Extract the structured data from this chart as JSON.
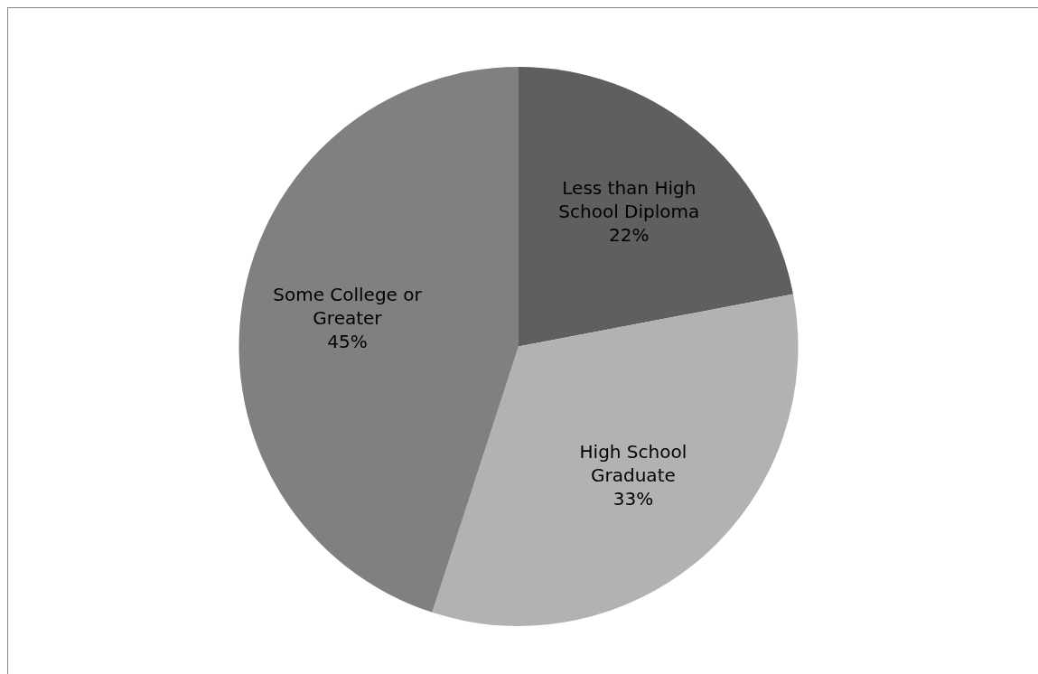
{
  "chart_data": {
    "type": "pie",
    "categories": [
      "Less than High School Diploma",
      "High School Graduate",
      "Some College or Greater"
    ],
    "values": [
      22,
      33,
      45
    ],
    "colors": [
      "#5f5f5f",
      "#b2b2b2",
      "#808080"
    ],
    "value_labels": [
      "22%",
      "33%",
      "45%"
    ],
    "legend": false
  }
}
